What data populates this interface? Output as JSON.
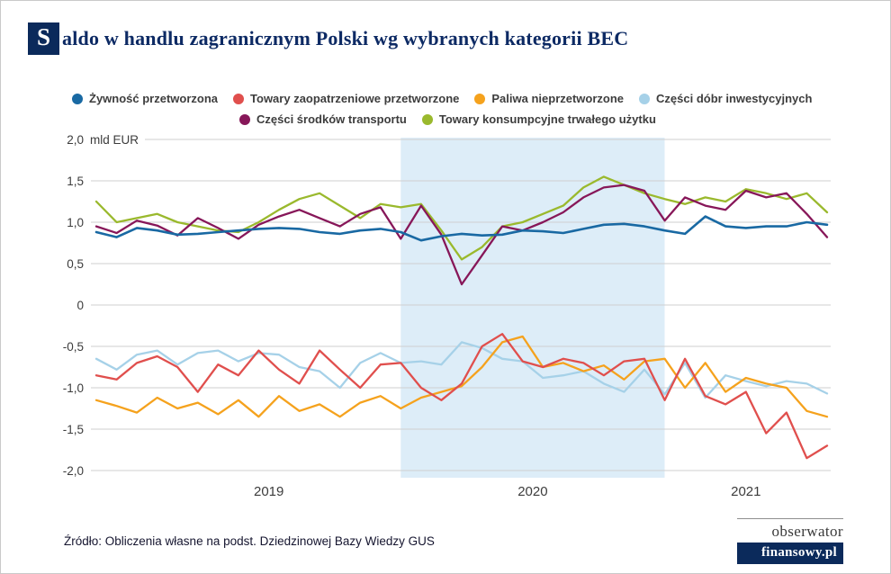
{
  "title": {
    "drop_cap": "S",
    "rest": "aldo w handlu zagranicznym Polski wg wybranych kategorii BEC"
  },
  "chart_data": {
    "type": "line",
    "title": "Saldo w handlu zagranicznym Polski wg wybranych kategorii BEC",
    "unit_label": "mld EUR",
    "ylim": [
      -2.0,
      2.0
    ],
    "grid": true,
    "legend_position": "top",
    "y_ticks": [
      {
        "value": 2.0,
        "label": "2,0"
      },
      {
        "value": 1.5,
        "label": "1,5"
      },
      {
        "value": 1.0,
        "label": "1,0"
      },
      {
        "value": 0.5,
        "label": "0,5"
      },
      {
        "value": 0.0,
        "label": "0"
      },
      {
        "value": -0.5,
        "label": "-0,5"
      },
      {
        "value": -1.0,
        "label": "-1,0"
      },
      {
        "value": -1.5,
        "label": "-1,5"
      },
      {
        "value": -2.0,
        "label": "-2,0"
      }
    ],
    "x_ticks": [
      {
        "label": "2019",
        "index": 8.5
      },
      {
        "label": "2020",
        "index": 21.5
      },
      {
        "label": "2021",
        "index": 32
      }
    ],
    "highlight_band": {
      "start_index": 15,
      "end_index": 28,
      "color": "#ddedf8"
    },
    "x_months": [
      "2018-10",
      "2018-11",
      "2018-12",
      "2019-01",
      "2019-02",
      "2019-03",
      "2019-04",
      "2019-05",
      "2019-06",
      "2019-07",
      "2019-08",
      "2019-09",
      "2019-10",
      "2019-11",
      "2019-12",
      "2020-01",
      "2020-02",
      "2020-03",
      "2020-04",
      "2020-05",
      "2020-06",
      "2020-07",
      "2020-08",
      "2020-09",
      "2020-10",
      "2020-11",
      "2020-12",
      "2021-01",
      "2021-02",
      "2021-03",
      "2021-04",
      "2021-05",
      "2021-06",
      "2021-07",
      "2021-08",
      "2021-09",
      "2021-10"
    ],
    "series": [
      {
        "name": "Żywność przetworzona",
        "color": "#1969a3",
        "values": [
          0.88,
          0.82,
          0.93,
          0.9,
          0.85,
          0.86,
          0.88,
          0.9,
          0.92,
          0.93,
          0.92,
          0.88,
          0.86,
          0.9,
          0.92,
          0.88,
          0.78,
          0.83,
          0.86,
          0.84,
          0.85,
          0.9,
          0.89,
          0.87,
          0.92,
          0.97,
          0.98,
          0.95,
          0.9,
          0.86,
          1.07,
          0.95,
          0.93,
          0.95,
          0.95,
          1.0,
          0.97
        ]
      },
      {
        "name": "Towary zaopatrzeniowe przetworzone",
        "color": "#e04f4d",
        "values": [
          -0.85,
          -0.9,
          -0.7,
          -0.62,
          -0.75,
          -1.05,
          -0.72,
          -0.85,
          -0.55,
          -0.78,
          -0.95,
          -0.55,
          -0.78,
          -1.0,
          -0.72,
          -0.7,
          -1.0,
          -1.15,
          -0.95,
          -0.5,
          -0.35,
          -0.68,
          -0.75,
          -0.65,
          -0.7,
          -0.85,
          -0.68,
          -0.65,
          -1.15,
          -0.65,
          -1.1,
          -1.2,
          -1.05,
          -1.55,
          -1.3,
          -1.85,
          -1.7
        ]
      },
      {
        "name": "Paliwa nieprzetworzone",
        "color": "#f5a21d",
        "values": [
          -1.15,
          -1.22,
          -1.3,
          -1.12,
          -1.25,
          -1.18,
          -1.32,
          -1.15,
          -1.35,
          -1.1,
          -1.28,
          -1.2,
          -1.35,
          -1.18,
          -1.1,
          -1.25,
          -1.12,
          -1.05,
          -0.98,
          -0.75,
          -0.45,
          -0.38,
          -0.75,
          -0.7,
          -0.8,
          -0.73,
          -0.9,
          -0.68,
          -0.65,
          -1.0,
          -0.7,
          -1.05,
          -0.88,
          -0.95,
          -1.0,
          -1.28,
          -1.35
        ]
      },
      {
        "name": "Części dóbr inwestycyjnych",
        "color": "#a6d1e8",
        "values": [
          -0.65,
          -0.78,
          -0.6,
          -0.55,
          -0.72,
          -0.58,
          -0.55,
          -0.68,
          -0.58,
          -0.6,
          -0.75,
          -0.8,
          -1.0,
          -0.7,
          -0.58,
          -0.7,
          -0.68,
          -0.72,
          -0.45,
          -0.52,
          -0.65,
          -0.68,
          -0.88,
          -0.85,
          -0.8,
          -0.95,
          -1.05,
          -0.78,
          -1.08,
          -0.7,
          -1.12,
          -0.85,
          -0.92,
          -0.98,
          -0.92,
          -0.95,
          -1.07
        ]
      },
      {
        "name": "Części środków transportu",
        "color": "#871759",
        "values": [
          0.95,
          0.87,
          1.02,
          0.96,
          0.84,
          1.05,
          0.93,
          0.8,
          0.97,
          1.07,
          1.15,
          1.05,
          0.95,
          1.1,
          1.18,
          0.8,
          1.2,
          0.85,
          0.25,
          0.6,
          0.95,
          0.9,
          1.0,
          1.12,
          1.3,
          1.42,
          1.45,
          1.38,
          1.02,
          1.3,
          1.2,
          1.15,
          1.38,
          1.3,
          1.35,
          1.1,
          0.82
        ]
      },
      {
        "name": "Towary konsumpcyjne trwałego użytku",
        "color": "#9ab92d",
        "values": [
          1.25,
          1.0,
          1.05,
          1.1,
          1.0,
          0.95,
          0.9,
          0.88,
          1.0,
          1.15,
          1.28,
          1.35,
          1.2,
          1.05,
          1.22,
          1.18,
          1.22,
          0.9,
          0.55,
          0.7,
          0.95,
          1.0,
          1.1,
          1.2,
          1.42,
          1.55,
          1.45,
          1.35,
          1.28,
          1.22,
          1.3,
          1.25,
          1.4,
          1.35,
          1.28,
          1.35,
          1.12
        ]
      }
    ],
    "legend_rows": [
      [
        0,
        1,
        2,
        3
      ],
      [
        4,
        5
      ]
    ],
    "draw_order": [
      3,
      2,
      1,
      5,
      4,
      0
    ]
  },
  "footer": {
    "source": "Źródło: Obliczenia własne na podst. Dziedzinowej Bazy Wiedzy GUS",
    "logo_top": "obserwator",
    "logo_bottom": "finansowy.pl"
  }
}
